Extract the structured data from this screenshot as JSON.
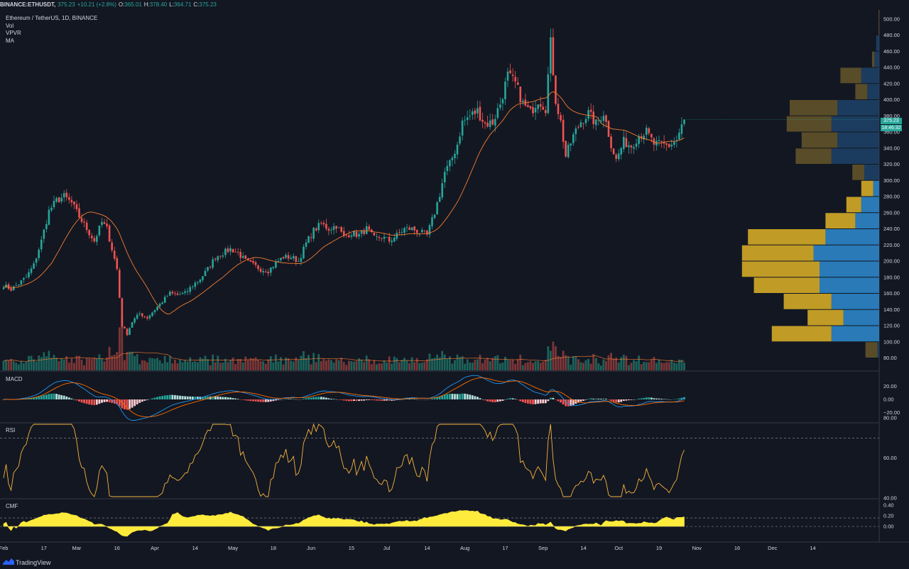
{
  "header": {
    "symbol": "BINANCE:ETHUSDT,",
    "last": "375.23",
    "change": "+10.21 (+2.8%)",
    "o_label": "O:",
    "o_val": "365.01",
    "h_label": "H:",
    "h_val": "378.40",
    "l_label": "L:",
    "l_val": "364.71",
    "c_label": "C:",
    "c_val": "375.23"
  },
  "legend": {
    "title": "Ethereum / TetherUS, 1D, BINANCE",
    "items": [
      "Vol",
      "VPVR",
      "MA"
    ]
  },
  "panes": {
    "macd": "MACD",
    "rsi": "RSI",
    "cmf": "CMF"
  },
  "price_tag": {
    "price": "375.23",
    "countdown": "18:46:32"
  },
  "footer": {
    "brand": "TradingView"
  },
  "colors": {
    "background": "#131722",
    "up": "#26a69a",
    "down": "#ef5350",
    "ma": "#f57c30",
    "rsi": "#f5b43c",
    "cmf": "#ffeb3b",
    "vpvr_up": "#2a7fc0",
    "vpvr_down": "#c9a227"
  },
  "chart_data": [
    {
      "type": "candlestick",
      "title": "Ethereum / TetherUS, 1D, BINANCE",
      "ylim": [
        70,
        505
      ],
      "y_ticks": [
        80,
        100,
        120,
        140,
        160,
        180,
        200,
        220,
        240,
        260,
        280,
        300,
        320,
        340,
        360,
        380,
        400,
        420,
        440,
        460,
        480,
        500
      ],
      "x_tick_labels": [
        "Feb",
        "17",
        "Mar",
        "16",
        "Apr",
        "14",
        "May",
        "18",
        "Jun",
        "15",
        "Jul",
        "14",
        "Aug",
        "17",
        "Sep",
        "14",
        "Oct",
        "19",
        "Nov",
        "16",
        "Dec",
        "14"
      ],
      "x_tick_index": [
        0,
        16,
        29,
        45,
        60,
        76,
        91,
        107,
        122,
        138,
        152,
        168,
        183,
        199,
        214,
        230,
        244,
        260,
        275,
        291,
        305,
        321
      ],
      "close_points": [
        [
          0,
          170
        ],
        [
          3,
          165
        ],
        [
          6,
          172
        ],
        [
          9,
          180
        ],
        [
          12,
          195
        ],
        [
          15,
          225
        ],
        [
          18,
          262
        ],
        [
          21,
          275
        ],
        [
          24,
          280
        ],
        [
          27,
          272
        ],
        [
          30,
          255
        ],
        [
          33,
          240
        ],
        [
          36,
          225
        ],
        [
          39,
          248
        ],
        [
          41,
          240
        ],
        [
          43,
          215
        ],
        [
          45,
          190
        ],
        [
          47,
          120
        ],
        [
          49,
          110
        ],
        [
          51,
          125
        ],
        [
          54,
          135
        ],
        [
          57,
          130
        ],
        [
          60,
          140
        ],
        [
          63,
          150
        ],
        [
          66,
          160
        ],
        [
          69,
          158
        ],
        [
          72,
          160
        ],
        [
          75,
          170
        ],
        [
          78,
          178
        ],
        [
          81,
          190
        ],
        [
          84,
          205
        ],
        [
          87,
          210
        ],
        [
          90,
          215
        ],
        [
          93,
          210
        ],
        [
          96,
          200
        ],
        [
          99,
          195
        ],
        [
          102,
          190
        ],
        [
          105,
          188
        ],
        [
          108,
          198
        ],
        [
          111,
          205
        ],
        [
          114,
          205
        ],
        [
          117,
          200
        ],
        [
          120,
          222
        ],
        [
          123,
          238
        ],
        [
          126,
          246
        ],
        [
          129,
          240
        ],
        [
          132,
          244
        ],
        [
          135,
          230
        ],
        [
          138,
          235
        ],
        [
          141,
          232
        ],
        [
          144,
          240
        ],
        [
          147,
          228
        ],
        [
          150,
          230
        ],
        [
          153,
          225
        ],
        [
          156,
          232
        ],
        [
          159,
          240
        ],
        [
          162,
          240
        ],
        [
          165,
          236
        ],
        [
          168,
          232
        ],
        [
          171,
          260
        ],
        [
          173,
          283
        ],
        [
          175,
          310
        ],
        [
          177,
          320
        ],
        [
          180,
          345
        ],
        [
          182,
          372
        ],
        [
          185,
          380
        ],
        [
          188,
          386
        ],
        [
          191,
          370
        ],
        [
          194,
          372
        ],
        [
          197,
          395
        ],
        [
          200,
          430
        ],
        [
          203,
          420
        ],
        [
          206,
          395
        ],
        [
          209,
          384
        ],
        [
          212,
          400
        ],
        [
          215,
          390
        ],
        [
          217,
          470
        ],
        [
          219,
          400
        ],
        [
          221,
          372
        ],
        [
          223,
          330
        ],
        [
          226,
          355
        ],
        [
          229,
          373
        ],
        [
          232,
          383
        ],
        [
          235,
          370
        ],
        [
          238,
          384
        ],
        [
          241,
          345
        ],
        [
          243,
          325
        ],
        [
          246,
          348
        ],
        [
          249,
          343
        ],
        [
          252,
          356
        ],
        [
          255,
          360
        ],
        [
          258,
          345
        ],
        [
          261,
          344
        ],
        [
          264,
          343
        ],
        [
          267,
          350
        ],
        [
          270,
          375
        ]
      ],
      "ma": "approx. 20-day moving average (orange line)",
      "last_close": 375.23
    },
    {
      "type": "bar",
      "title": "Vol",
      "note": "daily volume bars colored by candle direction with volume MA line"
    },
    {
      "type": "bar",
      "title": "VPVR",
      "orientation": "horizontal",
      "y_bins_price": [
        510,
        490,
        470,
        450,
        430,
        410,
        390,
        370,
        350,
        330,
        310,
        290,
        270,
        250,
        230,
        210,
        190,
        170,
        150,
        130,
        110,
        90
      ],
      "up_volume": [
        0,
        0,
        0.5,
        0.8,
        3,
        2,
        7,
        8,
        7,
        8,
        2.5,
        1,
        3,
        4,
        9,
        11,
        10,
        10,
        8,
        6,
        8,
        0.3
      ],
      "down_volume": [
        0.1,
        0.1,
        0,
        0.4,
        3.5,
        2,
        8,
        7.5,
        6,
        6,
        2,
        2,
        2.5,
        5,
        13,
        12,
        13,
        11,
        8,
        6,
        10,
        2
      ]
    },
    {
      "type": "line",
      "title": "MACD",
      "y_ticks": [
        20,
        0,
        -20
      ],
      "ylim": [
        -28,
        28
      ]
    },
    {
      "type": "line",
      "title": "RSI",
      "y_ticks": [
        80,
        60,
        40
      ],
      "ylim": [
        22,
        95
      ],
      "bands": [
        70,
        30
      ]
    },
    {
      "type": "area",
      "title": "CMF",
      "y_ticks": [
        0.4,
        0.2,
        0.0
      ],
      "ylim": [
        -0.08,
        0.42
      ]
    }
  ]
}
